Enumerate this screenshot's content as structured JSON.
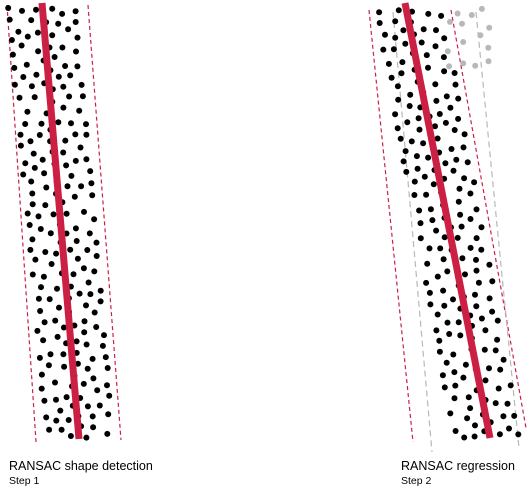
{
  "panels": [
    {
      "id": "shape-detection",
      "title": "RANSAC shape detection",
      "step": "Step 1",
      "colors": {
        "fit_line": "#cc1f44",
        "bounds": "#cc1f44",
        "inliers": "#000000"
      }
    },
    {
      "id": "regression",
      "title": "RANSAC regression",
      "step": "Step 2",
      "colors": {
        "fit_line": "#cc1f44",
        "bounds": "#cc1f44",
        "inner_bounds": "#b8b8b8",
        "inliers": "#000000",
        "outliers": "#b8b8b8"
      }
    }
  ]
}
